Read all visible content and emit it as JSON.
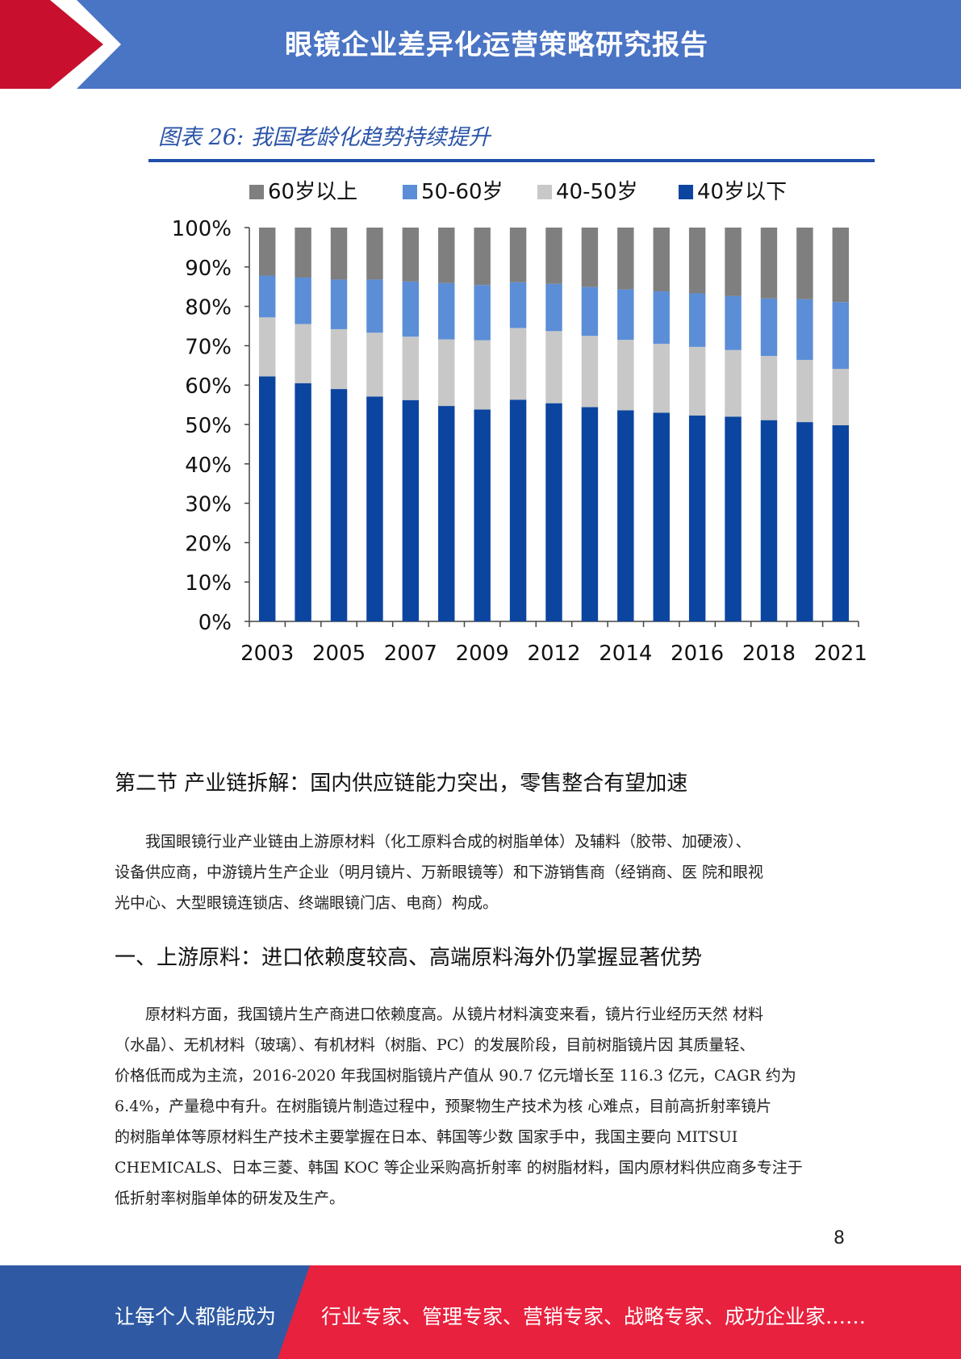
{
  "header": {
    "title": "眼镜企业差异化运营策略研究报告"
  },
  "figure": {
    "title": "图表 26:  我国老龄化趋势持续提升"
  },
  "chart_data": {
    "type": "bar",
    "stacked": true,
    "categories": [
      "2003",
      "2004",
      "2005",
      "2006",
      "2007",
      "2008",
      "2009",
      "2011",
      "2012",
      "2013",
      "2014",
      "2015",
      "2016",
      "2017",
      "2018",
      "2019",
      "2021"
    ],
    "tick_labels": [
      "2003",
      "2005",
      "2007",
      "2009",
      "2012",
      "2014",
      "2016",
      "2018",
      "2021"
    ],
    "y_ticks": [
      "0%",
      "10%",
      "20%",
      "30%",
      "40%",
      "50%",
      "60%",
      "70%",
      "80%",
      "90%",
      "100%"
    ],
    "ylim": [
      0,
      100
    ],
    "legend_position": "top",
    "series": [
      {
        "name": "40岁以下",
        "color": "#0b45a0",
        "values": [
          62.2,
          60.5,
          59.0,
          57.1,
          56.2,
          54.7,
          53.8,
          56.3,
          55.4,
          54.4,
          53.6,
          53.0,
          52.3,
          52.0,
          51.1,
          50.6,
          49.8
        ]
      },
      {
        "name": "40-50岁",
        "color": "#c8c8c8",
        "values": [
          15.0,
          15.0,
          15.2,
          16.2,
          16.1,
          16.9,
          17.6,
          18.2,
          18.3,
          18.1,
          17.9,
          17.5,
          17.4,
          16.9,
          16.3,
          15.8,
          14.3
        ]
      },
      {
        "name": "50-60岁",
        "color": "#5b8ed6",
        "values": [
          10.6,
          11.8,
          12.6,
          13.5,
          14.0,
          14.3,
          14.0,
          11.6,
          12.0,
          12.4,
          12.8,
          13.3,
          13.6,
          13.7,
          14.6,
          15.4,
          17.0
        ]
      },
      {
        "name": "60岁以上",
        "color": "#7f7f7f",
        "values": [
          12.2,
          12.7,
          13.2,
          13.2,
          13.7,
          14.1,
          14.6,
          13.9,
          14.3,
          15.1,
          15.7,
          16.2,
          16.7,
          17.4,
          18.0,
          18.2,
          18.9
        ]
      }
    ],
    "legend_order": [
      "60岁以上",
      "50-60岁",
      "40-50岁",
      "40岁以下"
    ]
  },
  "section": {
    "title": "第二节  产业链拆解：国内供应链能力突出，零售整合有望加速"
  },
  "para1": [
    "　　我国眼镜行业产业链由上游原材料（化工原料合成的树脂单体）及辅料（胶带、加硬液）、",
    "设备供应商，中游镜片生产企业（明月镜片、万新眼镜等）和下游销售商（经销商、医 院和眼视",
    "光中心、大型眼镜连锁店、终端眼镜门店、电商）构成。"
  ],
  "subsection": {
    "title": "一、上游原料：进口依赖度较高、高端原料海外仍掌握显著优势"
  },
  "para2": [
    "　　原材料方面，我国镜片生产商进口依赖度高。从镜片材料演变来看，镜片行业经历天然 材料",
    "（水晶）、无机材料（玻璃）、有机材料（树脂、PC）的发展阶段，目前树脂镜片因 其质量轻、",
    "价格低而成为主流，2016-2020 年我国树脂镜片产值从 90.7 亿元增长至 116.3 亿元，CAGR 约为",
    "6.4%，产量稳中有升。在树脂镜片制造过程中，预聚物生产技术为核 心难点，目前高折射率镜片",
    "的树脂单体等原材料生产技术主要掌握在日本、韩国等少数 国家手中，我国主要向 MITSUI",
    "CHEMICALS、日本三菱、韩国 KOC 等企业采购高折射率 的树脂材料，国内原材料供应商多专注于",
    "低折射率树脂单体的研发及生产。"
  ],
  "page_number": "8",
  "footer": {
    "left": "让每个人都能成为",
    "right": "行业专家、管理专家、营销专家、战略专家、成功企业家……"
  },
  "colors": {
    "header_blue": "#4a74c4",
    "accent_red": "#e3102e",
    "footer_blue": "#2f5aa3",
    "footer_red": "#e8213e"
  }
}
